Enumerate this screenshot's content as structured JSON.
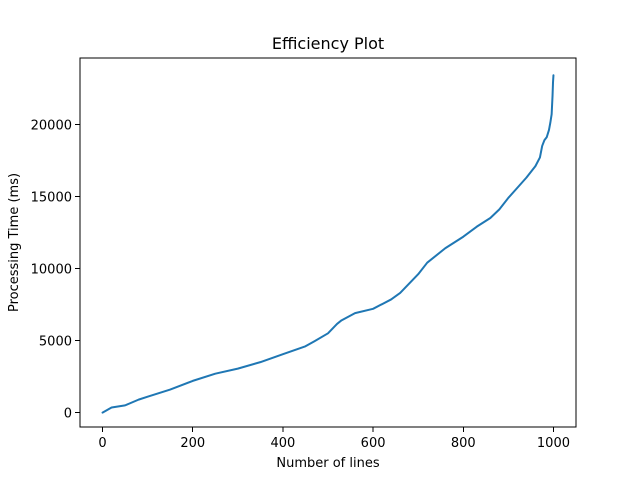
{
  "chart_data": {
    "type": "line",
    "title": "Efficiency Plot",
    "xlabel": "Number of lines",
    "ylabel": "Processing Time (ms)",
    "xlim": [
      -50,
      1050
    ],
    "ylim": [
      -1000,
      24600
    ],
    "xticks": [
      0,
      200,
      400,
      600,
      800,
      1000
    ],
    "yticks": [
      0,
      5000,
      10000,
      15000,
      20000
    ],
    "grid": false,
    "legend": "none",
    "series": [
      {
        "color": "#1f77b4",
        "x": [
          0,
          20,
          50,
          80,
          100,
          150,
          200,
          250,
          300,
          350,
          400,
          450,
          470,
          500,
          520,
          530,
          560,
          600,
          640,
          660,
          700,
          720,
          760,
          800,
          830,
          860,
          880,
          900,
          920,
          940,
          950,
          960,
          970,
          975,
          980,
          985,
          990,
          993,
          996,
          998,
          999,
          1000
        ],
        "y": [
          0,
          350,
          500,
          900,
          1100,
          1600,
          2200,
          2700,
          3050,
          3500,
          4050,
          4600,
          4950,
          5500,
          6150,
          6400,
          6900,
          7200,
          7850,
          8300,
          9600,
          10400,
          11400,
          12200,
          12900,
          13500,
          14100,
          14900,
          15600,
          16300,
          16700,
          17100,
          17700,
          18500,
          18900,
          19100,
          19600,
          20100,
          20700,
          22000,
          22900,
          23400
        ]
      }
    ]
  }
}
